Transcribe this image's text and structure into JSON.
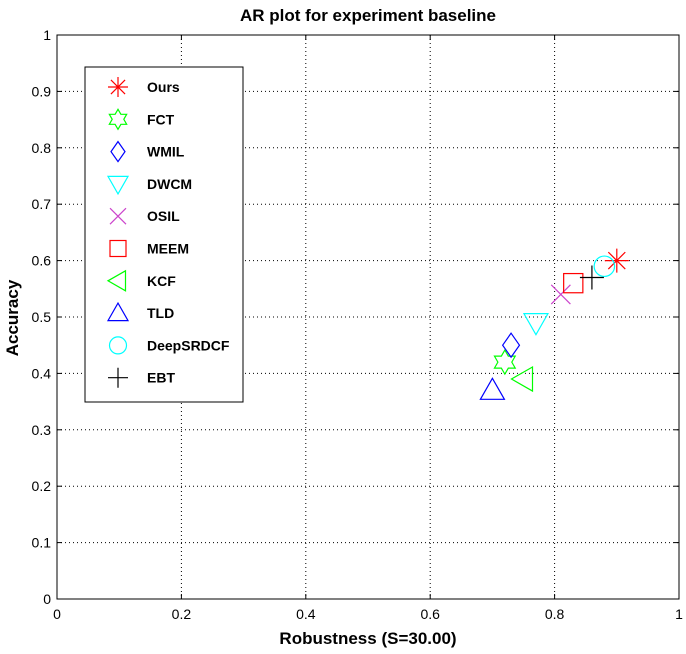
{
  "chart_data": {
    "type": "scatter",
    "title": "AR plot for experiment baseline",
    "xlabel": "Robustness (S=30.00)",
    "ylabel": "Accuracy",
    "xlim": [
      0,
      1
    ],
    "ylim": [
      0,
      1
    ],
    "xticks": [
      "0",
      "0.2",
      "0.4",
      "0.6",
      "0.8",
      "1"
    ],
    "yticks": [
      "0",
      "0.1",
      "0.2",
      "0.3",
      "0.4",
      "0.5",
      "0.6",
      "0.7",
      "0.8",
      "0.9",
      "1"
    ],
    "grid": true,
    "legend_position": "top-left",
    "series": [
      {
        "name": "Ours",
        "marker": "asterisk",
        "color": "#ff0000",
        "x": 0.9,
        "y": 0.6
      },
      {
        "name": "FCT",
        "marker": "hexagram",
        "color": "#00ff00",
        "x": 0.72,
        "y": 0.42
      },
      {
        "name": "WMIL",
        "marker": "diamond",
        "color": "#0000ff",
        "x": 0.73,
        "y": 0.45
      },
      {
        "name": "DWCM",
        "marker": "triangle-down",
        "color": "#00ffff",
        "x": 0.77,
        "y": 0.49
      },
      {
        "name": "OSIL",
        "marker": "x",
        "color": "#cc44cc",
        "x": 0.81,
        "y": 0.54
      },
      {
        "name": "MEEM",
        "marker": "square",
        "color": "#ff0000",
        "x": 0.83,
        "y": 0.56
      },
      {
        "name": "KCF",
        "marker": "triangle-left",
        "color": "#00ff00",
        "x": 0.75,
        "y": 0.39
      },
      {
        "name": "TLD",
        "marker": "triangle-up",
        "color": "#0000ff",
        "x": 0.7,
        "y": 0.37
      },
      {
        "name": "DeepSRDCF",
        "marker": "circle",
        "color": "#00ffff",
        "x": 0.88,
        "y": 0.59
      },
      {
        "name": "EBT",
        "marker": "plus",
        "color": "#000000",
        "x": 0.86,
        "y": 0.57
      }
    ]
  }
}
